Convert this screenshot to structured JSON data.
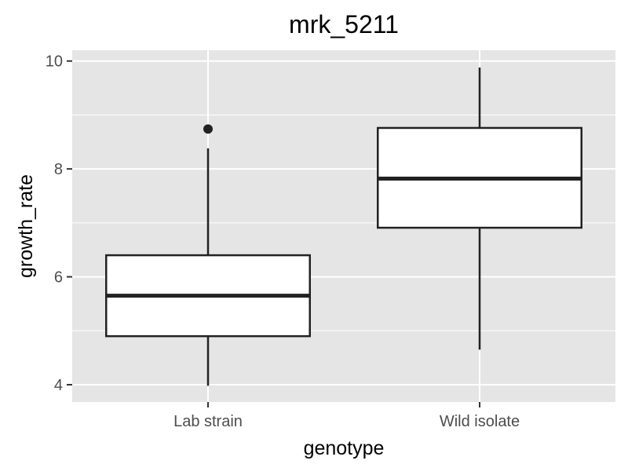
{
  "chart_data": {
    "type": "boxplot",
    "title": "mrk_5211",
    "xlabel": "genotype",
    "ylabel": "growth_rate",
    "categories": [
      "Lab strain",
      "Wild isolate"
    ],
    "boxes": [
      {
        "category": "Lab strain",
        "whisker_low": 3.98,
        "q1": 4.9,
        "median": 5.65,
        "q3": 6.4,
        "whisker_high": 8.38,
        "outliers": [
          8.74
        ]
      },
      {
        "category": "Wild isolate",
        "whisker_low": 4.65,
        "q1": 6.91,
        "median": 7.82,
        "q3": 8.76,
        "whisker_high": 9.88,
        "outliers": []
      }
    ],
    "ylim": [
      3.68,
      10.2
    ],
    "yticks": [
      4,
      6,
      8,
      10
    ],
    "ytick_labels": [
      "4",
      "6",
      "8",
      "10"
    ],
    "grid": true,
    "colors": {
      "panel": "#e5e5e5",
      "grid": "#ffffff",
      "box_fill": "#ffffff",
      "box_line": "#222222",
      "point": "#222222"
    }
  }
}
